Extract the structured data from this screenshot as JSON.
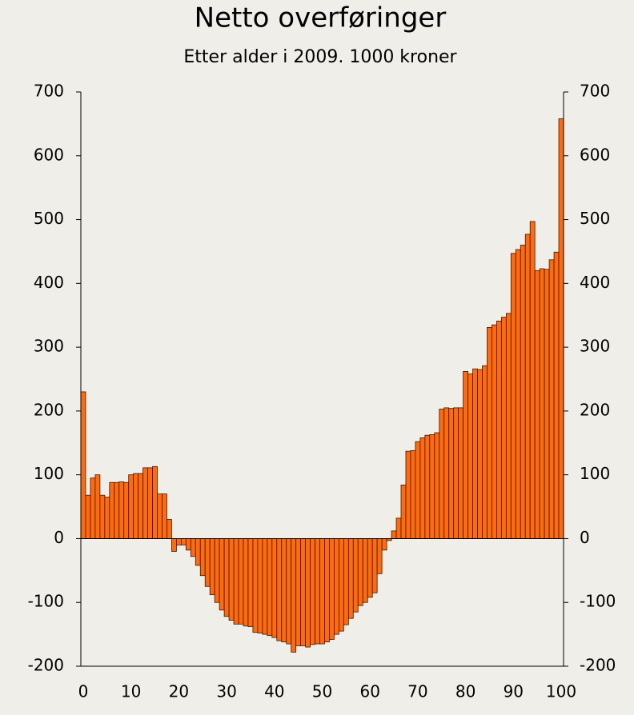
{
  "chart_data": {
    "type": "bar",
    "title": "Netto overføringer",
    "subtitle": "Etter alder i 2009. 1000 kroner",
    "x": [
      0,
      1,
      2,
      3,
      4,
      5,
      6,
      7,
      8,
      9,
      10,
      11,
      12,
      13,
      14,
      15,
      16,
      17,
      18,
      19,
      20,
      21,
      22,
      23,
      24,
      25,
      26,
      27,
      28,
      29,
      30,
      31,
      32,
      33,
      34,
      35,
      36,
      37,
      38,
      39,
      40,
      41,
      42,
      43,
      44,
      45,
      46,
      47,
      48,
      49,
      50,
      51,
      52,
      53,
      54,
      55,
      56,
      57,
      58,
      59,
      60,
      61,
      62,
      63,
      64,
      65,
      66,
      67,
      68,
      69,
      70,
      71,
      72,
      73,
      74,
      75,
      76,
      77,
      78,
      79,
      80,
      81,
      82,
      83,
      84,
      85,
      86,
      87,
      88,
      89,
      90,
      91,
      92,
      93,
      94,
      95,
      96,
      97,
      98,
      99,
      100
    ],
    "values": [
      230,
      68,
      95,
      100,
      68,
      65,
      88,
      88,
      89,
      88,
      100,
      102,
      102,
      111,
      111,
      113,
      70,
      70,
      30,
      -20,
      -10,
      -10,
      -18,
      -28,
      -42,
      -58,
      -75,
      -88,
      -100,
      -112,
      -122,
      -128,
      -134,
      -134,
      -137,
      -138,
      -147,
      -148,
      -150,
      -152,
      -155,
      -160,
      -162,
      -165,
      -178,
      -168,
      -168,
      -170,
      -166,
      -165,
      -165,
      -162,
      -158,
      -150,
      -145,
      -135,
      -125,
      -115,
      -105,
      -100,
      -92,
      -85,
      -55,
      -18,
      -3,
      12,
      32,
      84,
      137,
      138,
      152,
      158,
      162,
      163,
      166,
      203,
      205,
      204,
      205,
      205,
      262,
      258,
      266,
      265,
      271,
      331,
      335,
      341,
      347,
      353,
      447,
      453,
      460,
      477,
      497,
      420,
      423,
      422,
      437,
      449,
      658
    ],
    "color": "#ff6a10",
    "xlim": [
      -0.5,
      100.5
    ],
    "xticks": [
      0,
      10,
      20,
      30,
      40,
      50,
      60,
      70,
      80,
      90,
      100
    ],
    "ylim": [
      -200,
      700
    ],
    "yticks": [
      -200,
      -100,
      0,
      100,
      200,
      300,
      400,
      500,
      600,
      700
    ],
    "y2lim": [
      -200,
      700
    ],
    "y2ticks": [
      -200,
      -100,
      0,
      100,
      200,
      300,
      400,
      500,
      600,
      700
    ]
  }
}
